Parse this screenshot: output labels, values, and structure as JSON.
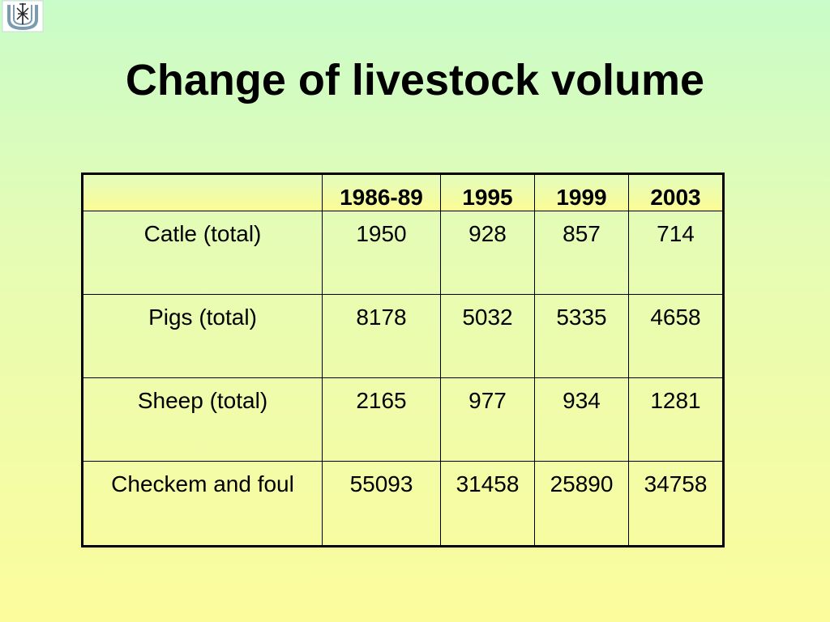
{
  "slide": {
    "title": "Change of livestock volume",
    "logo_icon": "university-emblem-icon"
  },
  "table": {
    "headers": [
      "",
      "1986-89",
      "1995",
      "1999",
      "2003"
    ],
    "rows": [
      {
        "label": "Catle (total)",
        "values": [
          "1950",
          "928",
          "857",
          "714"
        ]
      },
      {
        "label": "Pigs (total)",
        "values": [
          "8178",
          "5032",
          "5335",
          "4658"
        ]
      },
      {
        "label": "Sheep (total)",
        "values": [
          "2165",
          "977",
          "934",
          "1281"
        ]
      },
      {
        "label": "Checkem and foul",
        "values": [
          "55093",
          "31458",
          "25890",
          "34758"
        ]
      }
    ]
  },
  "colors": {
    "background_top": "#c8fcc8",
    "background_bottom": "#fcfc9c",
    "header_fill_bottom": "#fcfc94",
    "text": "#000000"
  }
}
